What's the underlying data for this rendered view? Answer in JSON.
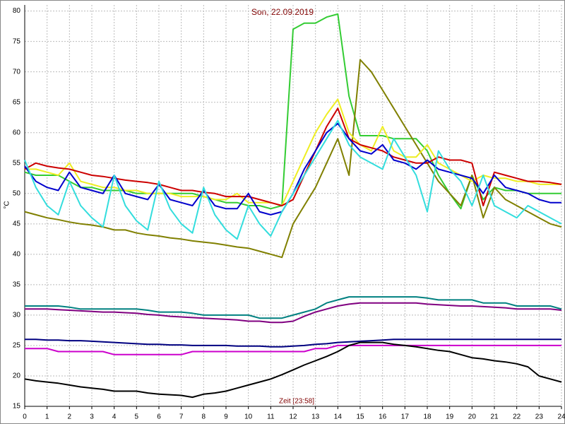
{
  "chart_data": {
    "type": "line",
    "title": "Son, 22.09.2019",
    "x_label": "Zeit [23:58]",
    "y_label": "°C",
    "x": [
      0,
      0.5,
      1,
      1.5,
      2,
      2.5,
      3,
      3.5,
      4,
      4.5,
      5,
      5.5,
      6,
      6.5,
      7,
      7.5,
      8,
      8.5,
      9,
      9.5,
      10,
      10.5,
      11,
      11.5,
      12,
      12.5,
      13,
      13.5,
      14,
      14.5,
      15,
      15.5,
      16,
      16.5,
      17,
      17.5,
      18,
      18.5,
      19,
      19.5,
      20,
      20.5,
      21,
      21.5,
      22,
      22.5,
      23,
      23.5,
      24
    ],
    "xlim": [
      0,
      24
    ],
    "xticks": [
      0,
      1,
      2,
      3,
      4,
      5,
      6,
      7,
      8,
      9,
      10,
      11,
      12,
      13,
      14,
      15,
      16,
      17,
      18,
      19,
      20,
      21,
      22,
      23,
      24
    ],
    "ylim": [
      15,
      81
    ],
    "yticks": [
      15,
      20,
      25,
      30,
      35,
      40,
      45,
      50,
      55,
      60,
      65,
      70,
      75,
      80
    ],
    "grid": true,
    "series": [
      {
        "color": "#33cc33",
        "values": [
          53.5,
          53,
          53,
          53,
          52,
          51,
          51,
          50.5,
          50.5,
          50.5,
          50,
          50,
          50,
          50,
          50,
          50,
          49.5,
          49,
          48.5,
          48.5,
          48,
          48,
          47.5,
          48,
          77,
          78,
          78,
          79,
          79.5,
          66,
          59.5,
          59.5,
          59.5,
          59,
          59,
          59,
          57,
          53,
          50,
          47.5,
          53,
          49,
          51,
          50.5,
          50.5,
          50,
          50,
          50,
          50
        ]
      },
      {
        "color": "#808000",
        "values": [
          47,
          46.5,
          46,
          45.7,
          45.3,
          45,
          44.8,
          44.5,
          44,
          44,
          43.5,
          43.2,
          43,
          42.7,
          42.5,
          42.2,
          42,
          41.8,
          41.5,
          41.2,
          41,
          40.5,
          40,
          39.5,
          45,
          48,
          51,
          55,
          59,
          53,
          72,
          70,
          67,
          64,
          61,
          58,
          55,
          52,
          50,
          48,
          53,
          46,
          51,
          49,
          48,
          47,
          46,
          45,
          44.5
        ]
      },
      {
        "color": "#eeee22",
        "values": [
          54,
          54,
          53.5,
          53,
          55,
          52,
          51.5,
          51,
          51,
          50.5,
          50.5,
          50,
          50,
          50,
          49.5,
          49.5,
          49.5,
          49,
          49,
          50,
          48.5,
          48.5,
          48.5,
          48,
          52,
          56,
          60,
          63,
          65.5,
          60,
          58,
          57,
          61,
          57,
          56,
          56,
          58,
          55,
          54,
          53,
          52,
          53,
          52.5,
          52.5,
          52,
          52,
          51.5,
          51.5,
          51.5
        ]
      },
      {
        "color": "#cc0000",
        "values": [
          54,
          55,
          54.5,
          54.2,
          54,
          53.5,
          53,
          52.8,
          52.5,
          52.2,
          52,
          51.8,
          51.5,
          51,
          50.5,
          50.5,
          50.2,
          50,
          49.5,
          49.5,
          49.5,
          49,
          48.5,
          48,
          49,
          53,
          57,
          61,
          64,
          59,
          58,
          57.5,
          57,
          56,
          55.5,
          55,
          55,
          56,
          55.5,
          55.5,
          55,
          48,
          53.5,
          53,
          52.5,
          52,
          52,
          51.8,
          51.5
        ]
      },
      {
        "color": "#0000cc",
        "values": [
          54.5,
          52,
          51,
          50.5,
          53.5,
          51,
          50.5,
          50,
          53,
          50,
          49.5,
          49,
          51.5,
          49,
          48.5,
          48,
          50.5,
          48,
          47.5,
          47.5,
          50,
          47,
          46.5,
          47,
          50,
          54,
          57,
          60,
          61.5,
          59,
          57,
          56.5,
          58,
          55.5,
          55,
          54,
          55.5,
          54,
          53.5,
          53,
          52.5,
          50,
          53,
          51,
          50.5,
          50,
          49,
          48.5,
          48.5
        ]
      },
      {
        "color": "#33dddd",
        "values": [
          55.5,
          51,
          48,
          46.5,
          52,
          48,
          46,
          44.5,
          53,
          48,
          45.5,
          44,
          52,
          47.5,
          45,
          43.5,
          51,
          46.5,
          44,
          42.5,
          48,
          45,
          43,
          47,
          50,
          53,
          56,
          59,
          62,
          58,
          56,
          55,
          54,
          59,
          56,
          53,
          47,
          57,
          54,
          52,
          48,
          53,
          48,
          47,
          46,
          48,
          47,
          46,
          45
        ]
      },
      {
        "color": "#008080",
        "values": [
          31.5,
          31.5,
          31.5,
          31.5,
          31.3,
          31,
          31,
          31,
          31,
          31,
          31,
          30.8,
          30.5,
          30.5,
          30.5,
          30.3,
          30,
          30,
          30,
          30,
          30,
          29.5,
          29.5,
          29.5,
          30,
          30.5,
          31,
          32,
          32.5,
          33,
          33,
          33,
          33,
          33,
          33,
          33,
          32.8,
          32.5,
          32.5,
          32.5,
          32.5,
          32,
          32,
          32,
          31.5,
          31.5,
          31.5,
          31.5,
          31
        ]
      },
      {
        "color": "#800080",
        "values": [
          31,
          31,
          31,
          30.9,
          30.8,
          30.7,
          30.6,
          30.5,
          30.5,
          30.4,
          30.3,
          30.1,
          30,
          29.8,
          29.7,
          29.6,
          29.5,
          29.4,
          29.3,
          29.2,
          29,
          29,
          28.8,
          28.8,
          29,
          29.8,
          30.5,
          31,
          31.5,
          31.8,
          32,
          32,
          32,
          32,
          32,
          32,
          31.8,
          31.7,
          31.6,
          31.5,
          31.5,
          31.4,
          31.3,
          31.2,
          31,
          31,
          31,
          31,
          30.8
        ]
      },
      {
        "color": "#000080",
        "values": [
          26,
          26,
          25.9,
          25.9,
          25.8,
          25.8,
          25.7,
          25.6,
          25.5,
          25.4,
          25.3,
          25.2,
          25.2,
          25.1,
          25.1,
          25,
          25,
          25,
          25,
          24.9,
          24.9,
          24.9,
          24.8,
          24.8,
          24.9,
          25,
          25.2,
          25.3,
          25.5,
          25.6,
          25.7,
          25.8,
          25.9,
          26,
          26,
          26,
          26,
          26,
          26,
          26,
          26,
          26,
          26,
          26,
          26,
          26,
          26,
          26,
          26
        ]
      },
      {
        "color": "#cc00cc",
        "values": [
          24.5,
          24.5,
          24.5,
          24,
          24,
          24,
          24,
          24,
          23.5,
          23.5,
          23.5,
          23.5,
          23.5,
          23.5,
          23.5,
          24,
          24,
          24,
          24,
          24,
          24,
          24,
          24,
          24,
          24,
          24,
          24.5,
          24.5,
          25,
          25,
          25,
          25,
          25,
          25,
          25,
          25,
          25,
          25,
          25,
          25,
          25,
          25,
          25,
          25,
          25,
          25,
          25,
          25,
          25
        ]
      },
      {
        "color": "#000000",
        "values": [
          19.5,
          19.2,
          19,
          18.8,
          18.5,
          18.2,
          18,
          17.8,
          17.5,
          17.5,
          17.5,
          17.2,
          17,
          16.9,
          16.8,
          16.5,
          17,
          17.2,
          17.5,
          18,
          18.5,
          19,
          19.5,
          20.2,
          21,
          21.8,
          22.5,
          23.2,
          24,
          25,
          25.5,
          25.5,
          25.5,
          25.2,
          25,
          24.8,
          24.5,
          24.2,
          24,
          23.5,
          23,
          22.8,
          22.5,
          22.3,
          22,
          21.5,
          20,
          19.5,
          19
        ]
      }
    ]
  }
}
